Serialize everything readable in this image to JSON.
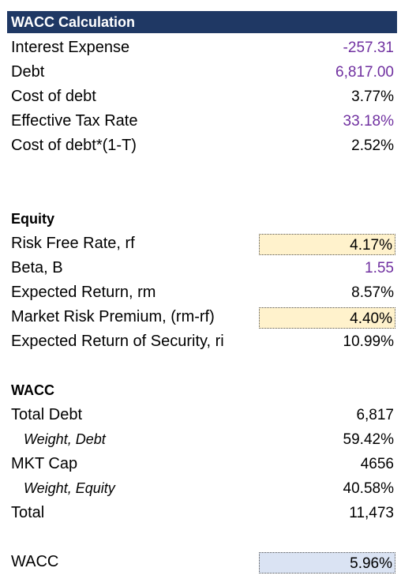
{
  "debt_section": {
    "title": "WACC Calculation",
    "rows": [
      {
        "label": "Interest Expense",
        "value": "-257.31"
      },
      {
        "label": "Debt",
        "value": "6,817.00"
      },
      {
        "label": "Cost of debt",
        "value": "3.77%"
      },
      {
        "label": "Effective Tax Rate",
        "value": "33.18%"
      },
      {
        "label": "Cost of debt*(1-T)",
        "value": "2.52%"
      }
    ]
  },
  "equity_section": {
    "title": "Equity",
    "rows": [
      {
        "label": "Risk Free Rate, rf",
        "value": "4.17%"
      },
      {
        "label": "Beta, B",
        "value": "1.55"
      },
      {
        "label": "Expected Return, rm",
        "value": "8.57%"
      },
      {
        "label": "Market Risk Premium, (rm-rf)",
        "value": "4.40%"
      },
      {
        "label": "Expected Return of Security, ri",
        "value": "10.99%"
      }
    ]
  },
  "wacc_section": {
    "title": "WACC",
    "rows": [
      {
        "label": "Total Debt",
        "value": "6,817"
      },
      {
        "label": "Weight, Debt",
        "value": "59.42%"
      },
      {
        "label": "MKT Cap",
        "value": "4656"
      },
      {
        "label": "Weight, Equity",
        "value": "40.58%"
      },
      {
        "label": "Total",
        "value": "11,473"
      }
    ]
  },
  "result": {
    "label": "WACC",
    "value": "5.96%"
  },
  "colors": {
    "header_bg": "#1f3864",
    "input_purple": "#7030a0",
    "highlight_tan": "#fff2cc",
    "highlight_blue": "#dae3f3"
  }
}
